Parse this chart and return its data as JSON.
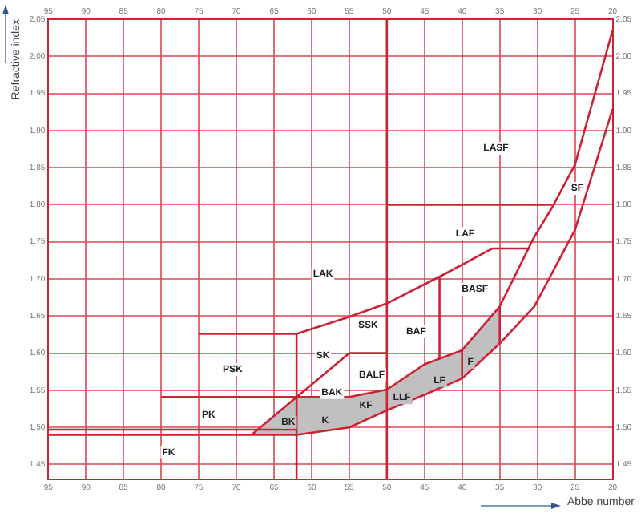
{
  "chart_data": {
    "type": "line",
    "xlabel": "Abbe number",
    "ylabel": "Refractive index",
    "xlim": [
      95,
      20
    ],
    "xticks": [
      95,
      90,
      85,
      80,
      75,
      70,
      65,
      60,
      55,
      50,
      45,
      40,
      35,
      30,
      25,
      20
    ],
    "x2lim": [
      95,
      20
    ],
    "x2ticks": [
      95,
      90,
      85,
      80,
      75,
      70,
      65,
      60,
      55,
      50,
      45,
      40,
      35,
      30,
      25,
      20
    ],
    "ylim": [
      1.43,
      2.05
    ],
    "yticks": [
      1.45,
      {
        "value": 1.5,
        "label": "1.50"
      },
      1.55,
      {
        "value": 1.6,
        "label": "1.60"
      },
      1.65,
      {
        "value": 1.7,
        "label": "1.70"
      },
      1.75,
      {
        "value": 1.8,
        "label": "1.80"
      },
      1.85,
      {
        "value": 1.9,
        "label": "1.90"
      },
      1.95,
      {
        "value": 2,
        "label": "2.00"
      },
      2.05
    ],
    "y2lim": [
      1.43,
      2.05
    ],
    "y2ticks": [
      1.45,
      {
        "value": 1.5,
        "label": "1.50"
      },
      1.55,
      {
        "value": 1.6,
        "label": "1.60"
      },
      1.65,
      {
        "value": 1.7,
        "label": "1.70"
      },
      1.75,
      {
        "value": 1.8,
        "label": "1.80"
      },
      1.85,
      {
        "value": 1.9,
        "label": "1.90"
      },
      1.95,
      {
        "value": 2,
        "label": "2.00"
      },
      2.05
    ],
    "grid": true,
    "legend": false,
    "marker": "none",
    "line_style": "solid",
    "series": [
      {
        "type": "area",
        "color": "#c0c0c0",
        "x": [
          68,
          62,
          55,
          50,
          45,
          40,
          35,
          35,
          40,
          45,
          50,
          55,
          62,
          68
        ],
        "values": [
          1.49,
          1.49,
          1.5,
          1.523,
          1.544,
          1.566,
          1.613,
          1.663,
          1.604,
          1.585,
          1.551,
          1.541,
          1.541,
          1.49
        ]
      },
      {
        "color": "#cc2233",
        "x": [
          95,
          62,
          55,
          50,
          45,
          40,
          35,
          30.4,
          25,
          20
        ],
        "values": [
          1.49,
          1.49,
          1.5,
          1.523,
          1.544,
          1.566,
          1.613,
          1.663,
          1.766,
          1.929
        ]
      },
      {
        "color": "#cc2233",
        "x": [
          80,
          55,
          50,
          45,
          40,
          35,
          30.5,
          28,
          25,
          20
        ],
        "values": [
          1.541,
          1.541,
          1.551,
          1.585,
          1.604,
          1.663,
          1.755,
          1.797,
          1.854,
          2.035
        ]
      },
      {
        "color": "#cc2233",
        "x": [
          95,
          62
        ],
        "values": [
          1.497,
          1.497
        ]
      },
      {
        "color": "#cc2233",
        "x": [
          68,
          55,
          50
        ],
        "values": [
          1.49,
          1.6,
          1.6
        ]
      },
      {
        "color": "#cc2233",
        "x": [
          75,
          62,
          55,
          50,
          43,
          36,
          31
        ],
        "values": [
          1.626,
          1.626,
          1.649,
          1.667,
          1.703,
          1.741,
          1.741
        ]
      },
      {
        "color": "#cc2233",
        "x": [
          62,
          62
        ],
        "values": [
          1.43,
          1.626
        ]
      },
      {
        "color": "#cc2233",
        "x": [
          50,
          50
        ],
        "values": [
          1.43,
          2.05
        ]
      },
      {
        "color": "#cc2233",
        "x": [
          43,
          43
        ],
        "values": [
          1.593,
          1.703
        ]
      },
      {
        "color": "#cc2233",
        "x": [
          40,
          40
        ],
        "values": [
          1.566,
          1.604
        ]
      },
      {
        "color": "#cc2233",
        "x": [
          35,
          35
        ],
        "values": [
          1.613,
          1.663
        ]
      },
      {
        "color": "#cc2233",
        "x": [
          50,
          28
        ],
        "values": [
          1.8,
          1.8
        ]
      }
    ],
    "annotations": [
      "FK",
      "PK",
      "PSK",
      "BK",
      "K",
      "BAK",
      "SK",
      "BALF",
      "KF",
      "LLF",
      "LF",
      "F",
      "SSK",
      "BAF",
      "BASF",
      "LAK",
      "LAF",
      "SF",
      "LASF"
    ]
  }
}
